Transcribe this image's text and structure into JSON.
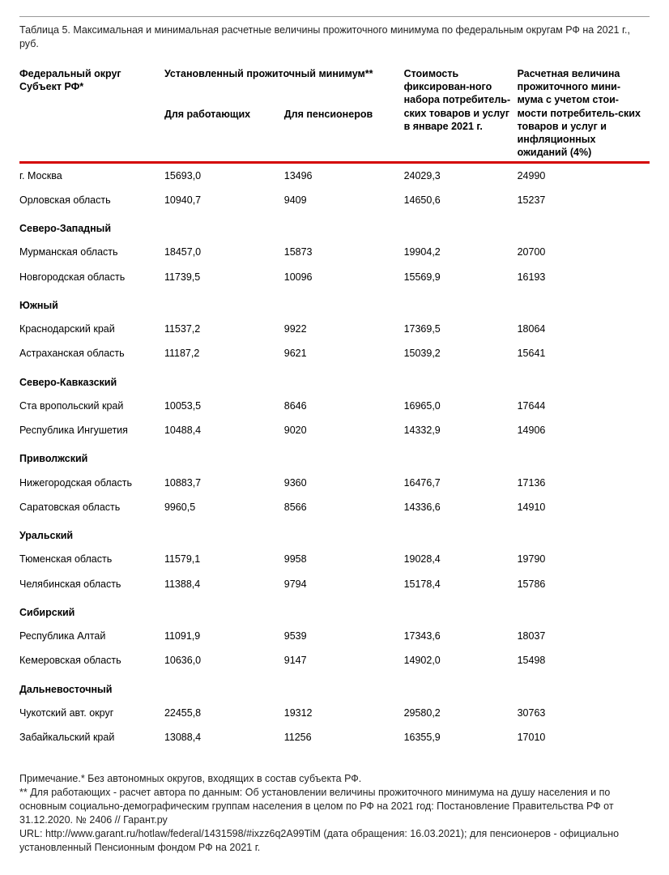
{
  "caption": "Таблица 5. Максимальная и минимальная расчетные величины прожиточного минимума по федеральным округам РФ на 2021 г., руб.",
  "header": {
    "col1_l1": "Федеральный округ",
    "col1_l2": "Субъект РФ*",
    "col23_top": "Установленный прожиточный минимум**",
    "col2_sub": "Для работающих",
    "col3_sub": "Для пенсионеров",
    "col4": "Стоимость фиксирован-ного набора потребитель-ских товаров и услуг в январе 2021 г.",
    "col5": "Расчетная величина прожиточного мини-мума с учетом стои-мости потребитель-ских товаров и услуг и инфляционных ожиданий (4%)"
  },
  "rows": [
    {
      "type": "data",
      "c1": "г. Москва",
      "c2": "15693,0",
      "c3": "13496",
      "c4": "24029,3",
      "c5": "24990"
    },
    {
      "type": "data",
      "c1": "Орловская область",
      "c2": "10940,7",
      "c3": "9409",
      "c4": "14650,6",
      "c5": "15237"
    },
    {
      "type": "group",
      "c1": "Северо-Западный"
    },
    {
      "type": "data",
      "c1": "Мурманская область",
      "c2": "18457,0",
      "c3": "15873",
      "c4": "19904,2",
      "c5": "20700"
    },
    {
      "type": "data",
      "c1": "Новгородская область",
      "c2": "11739,5",
      "c3": "10096",
      "c4": "15569,9",
      "c5": "16193"
    },
    {
      "type": "group",
      "c1": "Южный"
    },
    {
      "type": "data",
      "c1": "Краснодарский край",
      "c2": "11537,2",
      "c3": "9922",
      "c4": "17369,5",
      "c5": "18064"
    },
    {
      "type": "data",
      "c1": "Астраханская область",
      "c2": "11187,2",
      "c3": "9621",
      "c4": "15039,2",
      "c5": "15641"
    },
    {
      "type": "group",
      "c1": "Северо-Кавказский"
    },
    {
      "type": "data",
      "c1": "Ста вропольский край",
      "c2": "10053,5",
      "c3": "8646",
      "c4": "16965,0",
      "c5": "17644"
    },
    {
      "type": "data",
      "c1": "Республика Ингушетия",
      "c2": "10488,4",
      "c3": "9020",
      "c4": "14332,9",
      "c5": "14906"
    },
    {
      "type": "group",
      "c1": "Приволжский"
    },
    {
      "type": "data",
      "c1": "Нижегородская область",
      "c2": "10883,7",
      "c3": "9360",
      "c4": "16476,7",
      "c5": "17136"
    },
    {
      "type": "data",
      "c1": "Саратовская область",
      "c2": "9960,5",
      "c3": "8566",
      "c4": "14336,6",
      "c5": "14910"
    },
    {
      "type": "group",
      "c1": "Уральский"
    },
    {
      "type": "data",
      "c1": "Тюменская область",
      "c2": "11579,1",
      "c3": "9958",
      "c4": "19028,4",
      "c5": "19790"
    },
    {
      "type": "data",
      "c1": "Челябинская область",
      "c2": "11388,4",
      "c3": "9794",
      "c4": "15178,4",
      "c5": "15786"
    },
    {
      "type": "group",
      "c1": "Сибирский"
    },
    {
      "type": "data",
      "c1": "Республика Алтай",
      "c2": "11091,9",
      "c3": "9539",
      "c4": "17343,6",
      "c5": "18037"
    },
    {
      "type": "data",
      "c1": "Кемеровская область",
      "c2": "10636,0",
      "c3": "9147",
      "c4": "14902,0",
      "c5": "15498"
    },
    {
      "type": "group",
      "c1": "Дальневосточный"
    },
    {
      "type": "data",
      "c1": "Чукотский авт. округ",
      "c2": "22455,8",
      "c3": "19312",
      "c4": "29580,2",
      "c5": "30763"
    },
    {
      "type": "data",
      "c1": "Забайкальский край",
      "c2": "13088,4",
      "c3": "11256",
      "c4": "16355,9",
      "c5": "17010"
    }
  ],
  "notes": {
    "l1": "Примечание.* Без автономных округов, входящих в состав субъекта РФ.",
    "l2": "** Для работающих - расчет автора по данным: Об установлении величины прожиточного минимума на душу населения и по основным социально-демографическим группам населения в целом по РФ на 2021 год: Постановление Правительства РФ от 31.12.2020. № 2406 // Гарант.ру",
    "l3": "URL: http://www.garant.ru/hotlaw/federal/1431598/#ixzz6q2A99TiM (дата обращения: 16.03.2021); для пенсионеров - официально установленный Пенсионным фондом РФ на 2021 г."
  },
  "style": {
    "rule_color": "#d40000",
    "text_color": "#000000",
    "background": "#ffffff"
  }
}
